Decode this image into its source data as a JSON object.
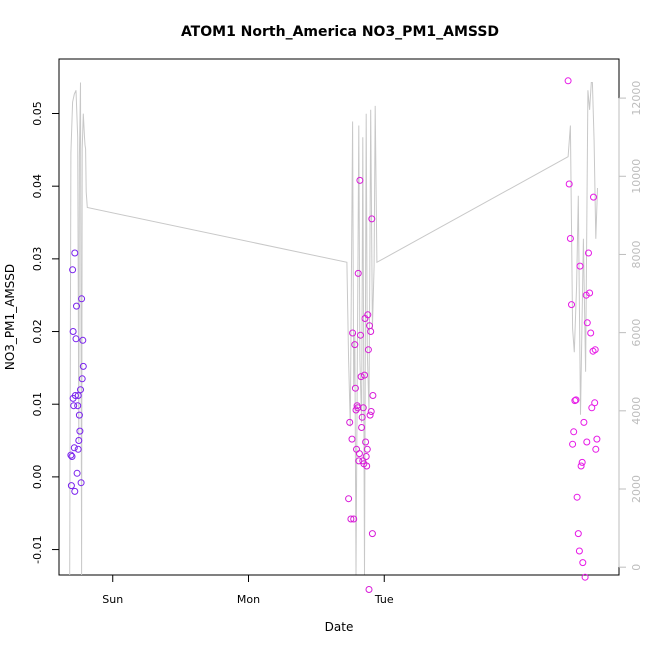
{
  "chart_data": {
    "type": "scatter",
    "title": "ATOM1 North_America NO3_PM1_AMSSD",
    "xlabel": "Date",
    "ylabel": "NO3_PM1_AMSSD",
    "y2label": "",
    "x_unit": "hours since Sat 00:00",
    "xlim": [
      14.5,
      113.5
    ],
    "ylim": [
      -0.0135,
      0.0575
    ],
    "y2lim": [
      -200,
      13000
    ],
    "x_ticks": [
      {
        "value": 24,
        "label": "Sun"
      },
      {
        "value": 48,
        "label": "Mon"
      },
      {
        "value": 72,
        "label": "Tue"
      }
    ],
    "y_ticks": [
      {
        "value": -0.01,
        "label": "-0.01"
      },
      {
        "value": 0.0,
        "label": "0.00"
      },
      {
        "value": 0.01,
        "label": "0.01"
      },
      {
        "value": 0.02,
        "label": "0.02"
      },
      {
        "value": 0.03,
        "label": "0.03"
      },
      {
        "value": 0.04,
        "label": "0.04"
      },
      {
        "value": 0.05,
        "label": "0.05"
      }
    ],
    "y2_ticks": [
      {
        "value": 0,
        "label": "0"
      },
      {
        "value": 2000,
        "label": "2000"
      },
      {
        "value": 4000,
        "label": "4000"
      },
      {
        "value": 6000,
        "label": "6000"
      },
      {
        "value": 8000,
        "label": "8000"
      },
      {
        "value": 10000,
        "label": "10000"
      },
      {
        "value": 12000,
        "label": "12000"
      }
    ],
    "grid": false,
    "series": [
      {
        "kind": "points",
        "color": "#7a22ee",
        "x": [
          16.6,
          16.7,
          16.8,
          16.9,
          17.0,
          17.0,
          17.1,
          17.2,
          17.3,
          17.3,
          17.4,
          17.5,
          17.6,
          17.7,
          17.8,
          17.9,
          17.9,
          18.0,
          18.1,
          18.2,
          18.3,
          18.4,
          18.5,
          18.6,
          18.7,
          18.8
        ],
        "y": [
          0.003,
          -0.0012,
          0.0028,
          0.0285,
          0.02,
          0.0108,
          0.0098,
          0.004,
          0.0308,
          -0.002,
          0.0112,
          0.019,
          0.0235,
          0.0005,
          0.0098,
          0.0038,
          0.0112,
          0.005,
          0.0085,
          0.0063,
          0.012,
          -0.0008,
          0.0245,
          0.0135,
          0.0188,
          0.0152
        ]
      },
      {
        "kind": "points",
        "color": "#d81bd8",
        "x": [
          65.7,
          65.9,
          66.1,
          66.3,
          66.4,
          66.6,
          66.8,
          66.9,
          67.0,
          67.1,
          67.2,
          67.3,
          67.4,
          67.5,
          67.6,
          67.7,
          67.8,
          67.9,
          68.0,
          68.1,
          68.2,
          68.3,
          68.4,
          68.5,
          68.6,
          68.7,
          68.8,
          68.9,
          69.0,
          69.1,
          69.2,
          69.3,
          69.4,
          69.5,
          69.6,
          69.7,
          69.8,
          69.9,
          70.0
        ],
        "y": [
          -0.003,
          0.0075,
          -0.0058,
          0.0052,
          0.0198,
          -0.0058,
          0.0182,
          0.0122,
          0.0092,
          0.0038,
          0.0098,
          0.0095,
          0.028,
          0.0022,
          0.0032,
          0.0408,
          0.0195,
          0.0138,
          0.0068,
          0.0082,
          0.0022,
          0.0095,
          0.0018,
          0.014,
          0.0218,
          0.0048,
          0.0028,
          0.0015,
          0.0038,
          0.0223,
          0.0175,
          -0.0155,
          0.0208,
          0.0085,
          0.02,
          0.009,
          0.0355,
          -0.0078,
          0.0112
        ]
      },
      {
        "kind": "points",
        "color": "#e619e6",
        "x": [
          104.5,
          104.7,
          104.9,
          105.1,
          105.3,
          105.5,
          105.7,
          105.9,
          106.1,
          106.3,
          106.5,
          106.6,
          106.8,
          107.0,
          107.1,
          107.3,
          107.5,
          107.7,
          107.8,
          107.9,
          108.1,
          108.3,
          108.5,
          108.7,
          108.9,
          109.0,
          109.2,
          109.3,
          109.4,
          109.6
        ],
        "y": [
          0.0545,
          0.0403,
          0.0328,
          0.0237,
          0.0045,
          0.0062,
          0.0105,
          0.0106,
          -0.0028,
          -0.0078,
          -0.0102,
          0.029,
          0.0015,
          0.002,
          -0.0118,
          0.0075,
          -0.0138,
          0.025,
          0.0048,
          0.0212,
          0.0308,
          0.0253,
          0.0198,
          0.0095,
          0.0173,
          0.0385,
          0.0102,
          0.0175,
          0.0038,
          0.0052
        ]
      },
      {
        "kind": "line",
        "axis": "right",
        "color": "#c8c8c8",
        "x": [
          16.4,
          16.6,
          16.9,
          17.2,
          17.5,
          17.8,
          18.0,
          18.1,
          18.3,
          18.5,
          18.6,
          18.8,
          19.0,
          19.1,
          19.2,
          19.3,
          19.5,
          65.4,
          65.7,
          66.0,
          66.2,
          66.4,
          66.6,
          66.8,
          67.0,
          67.3,
          67.5,
          67.7,
          68.0,
          68.2,
          68.5,
          68.8,
          69.0,
          69.3,
          69.6,
          69.9,
          70.2,
          70.4,
          70.7,
          104.5,
          104.9,
          105.3,
          105.6,
          106.0,
          106.3,
          106.7,
          107.2,
          107.6,
          108.0,
          108.3,
          108.6,
          108.8,
          109.1,
          109.4,
          109.7
        ],
        "y": [
          -200,
          10600,
          11900,
          12100,
          12200,
          11000,
          3200,
          10500,
          12400,
          -200,
          10700,
          11600,
          11000,
          10800,
          10700,
          9600,
          9200,
          7800,
          5300,
          3600,
          7400,
          11400,
          4600,
          6000,
          -200,
          6800,
          11300,
          5300,
          3700,
          11000,
          -200,
          11600,
          5500,
          4000,
          11700,
          6100,
          7700,
          11800,
          7800,
          10500,
          11300,
          6100,
          5500,
          7200,
          9500,
          3900,
          8400,
          5000,
          12200,
          11700,
          12400,
          12400,
          10900,
          8400,
          9700
        ]
      }
    ]
  }
}
